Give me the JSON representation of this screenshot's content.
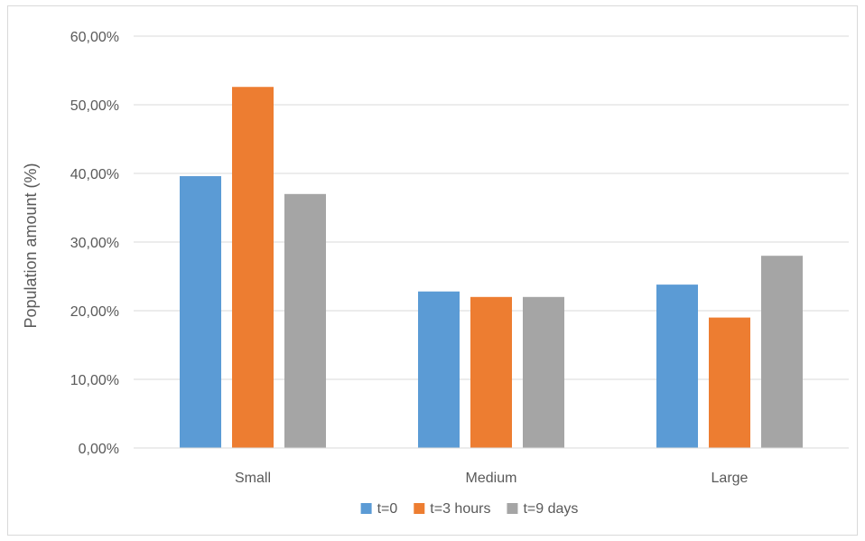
{
  "chart_data": {
    "type": "bar",
    "title": "",
    "xlabel": "",
    "ylabel": "Population amount (%)",
    "categories": [
      "Small",
      "Medium",
      "Large"
    ],
    "series": [
      {
        "name": "t=0",
        "color": "#5b9bd5",
        "values": [
          39.6,
          22.8,
          23.8
        ]
      },
      {
        "name": "t=3 hours",
        "color": "#ed7d31",
        "values": [
          52.6,
          22.0,
          19.0
        ]
      },
      {
        "name": "t=9 days",
        "color": "#a5a5a5",
        "values": [
          37.0,
          22.0,
          28.0
        ]
      }
    ],
    "ylim": [
      0,
      60
    ],
    "y_ticks": [
      "0,00%",
      "10,00%",
      "20,00%",
      "30,00%",
      "40,00%",
      "50,00%",
      "60,00%"
    ],
    "y_tick_values": [
      0,
      10,
      20,
      30,
      40,
      50,
      60
    ],
    "grid": true,
    "legend_position": "bottom"
  }
}
